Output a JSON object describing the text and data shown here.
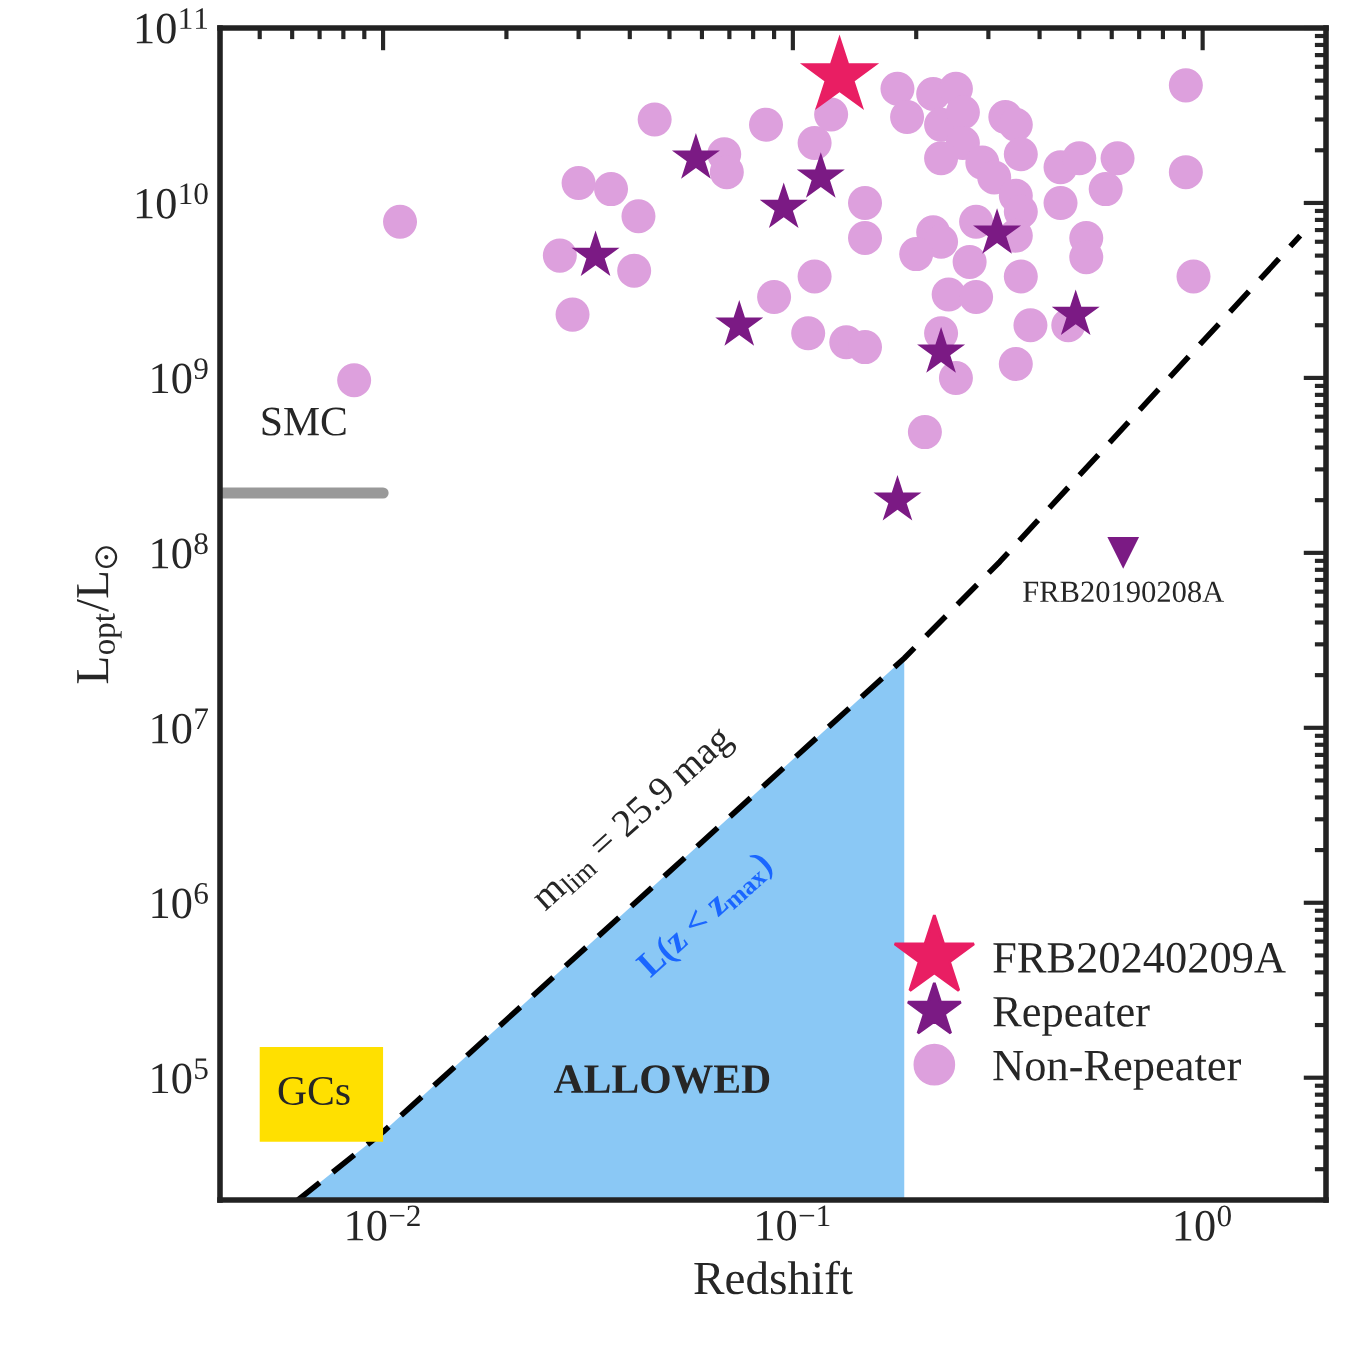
{
  "chart_data": {
    "type": "scatter",
    "xlabel": "Redshift",
    "ylabel": "L$_{opt}$/L$_{⊙}$",
    "log": "xy",
    "xlim": [
      0.004,
      2
    ],
    "ylim": [
      20000,
      100000000000
    ],
    "xticks": [
      {
        "value": 0.01,
        "label": "10$^{−2}$"
      },
      {
        "value": 0.1,
        "label": "10$^{−1}$"
      },
      {
        "value": 1,
        "label": "10$^{0}$"
      }
    ],
    "yticks": [
      {
        "value": 100000,
        "label": "10$^{5}$"
      },
      {
        "value": 1000000,
        "label": "10$^{6}$"
      },
      {
        "value": 10000000,
        "label": "10$^{7}$"
      },
      {
        "value": 100000000,
        "label": "10$^{8}$"
      },
      {
        "value": 1000000000,
        "label": "10$^{9}$"
      },
      {
        "value": 10000000000,
        "label": "10$^{10}$"
      },
      {
        "value": 100000000000,
        "label": "10$^{11}$"
      }
    ],
    "grid": false,
    "legend": "bottom right",
    "series": [
      {
        "type": "area",
        "color": "#8ac8f5",
        "x": [
          0.0062,
          0.01,
          0.187
        ],
        "values": [
          20000,
          49000,
          25000000
        ]
      },
      {
        "type": "line",
        "color": "#000000",
        "line_style": "dashed",
        "marker": "none",
        "x": [
          0.0062,
          0.01,
          0.187,
          0.32,
          1.73
        ],
        "values": [
          20000,
          49000,
          25000000,
          89000000,
          6500000000
        ]
      },
      {
        "type": "line",
        "color": "#999999",
        "line_style": "solid",
        "marker": "none",
        "x": [
          0.004,
          0.01
        ],
        "values": [
          220000000,
          220000000
        ]
      },
      {
        "name": "Non-Repeater",
        "color": "#dda0dd",
        "marker": "circle",
        "x": [
          0.046,
          0.03,
          0.036,
          0.042,
          0.027,
          0.041,
          0.029,
          0.011,
          0.0085,
          0.086,
          0.068,
          0.069,
          0.113,
          0.124,
          0.113,
          0.09,
          0.109,
          0.135,
          0.18,
          0.22,
          0.25,
          0.19,
          0.23,
          0.26,
          0.33,
          0.35,
          0.26,
          0.23,
          0.29,
          0.36,
          0.45,
          0.5,
          0.62,
          0.91,
          0.91,
          0.31,
          0.58,
          0.45,
          0.35,
          0.36,
          0.15,
          0.15,
          0.22,
          0.28,
          0.23,
          0.2,
          0.27,
          0.35,
          0.52,
          0.52,
          0.95,
          0.24,
          0.28,
          0.36,
          0.38,
          0.47,
          0.15,
          0.23,
          0.25,
          0.35,
          0.21
        ],
        "values": [
          30000000000.0,
          13000000000.0,
          12000000000.0,
          8400000000.0,
          5000000000.0,
          4100000000.0,
          2300000000.0,
          7800000000.0,
          970000000.0,
          28000000000.0,
          19000000000.0,
          15000000000.0,
          22000000000.0,
          32000000000.0,
          3800000000.0,
          2900000000.0,
          1800000000.0,
          1600000000.0,
          45000000000.0,
          42000000000.0,
          45000000000.0,
          31000000000.0,
          28000000000.0,
          33000000000.0,
          31000000000.0,
          28000000000.0,
          22000000000.0,
          18000000000.0,
          17000000000.0,
          19000000000.0,
          16000000000.0,
          18000000000.0,
          18000000000.0,
          47000000000.0,
          15000000000.0,
          14000000000.0,
          12000000000.0,
          10000000000.0,
          11000000000.0,
          8900000000.0,
          10000000000.0,
          6300000000.0,
          6800000000.0,
          7800000000.0,
          6000000000.0,
          5100000000.0,
          4600000000.0,
          6500000000.0,
          6300000000.0,
          4900000000.0,
          3800000000.0,
          3000000000.0,
          2900000000.0,
          3800000000.0,
          2000000000.0,
          2000000000.0,
          1500000000.0,
          1800000000.0,
          1000000000.0,
          1200000000.0,
          490000000.0
        ]
      },
      {
        "name": "Repeater",
        "color": "#7b1a84",
        "marker": "star",
        "x": [
          0.058,
          0.033,
          0.095,
          0.117,
          0.074,
          0.315,
          0.49,
          0.23,
          0.18
        ],
        "values": [
          18000000000.0,
          5000000000.0,
          9400000000.0,
          14000000000.0,
          2000000000.0,
          6700000000.0,
          2300000000.0,
          1400000000.0,
          200000000.0
        ]
      },
      {
        "color": "#7b1a84",
        "marker": "triangle",
        "x": [
          0.64
        ],
        "values": [
          100000000.0
        ]
      },
      {
        "name": "FRB20240209A",
        "color": "#e91e63",
        "marker": "star",
        "x": [
          0.13
        ],
        "values": [
          53000000000.0
        ]
      }
    ],
    "annotations": [
      "SMC",
      {
        "text": "FRB20190208A",
        "x": 0.64,
        "y": 100000000
      },
      "GCs",
      "ALLOWED",
      "L(z < z$_{max}$)",
      "m$_{lim}$ = 25.9 mag"
    ]
  }
}
